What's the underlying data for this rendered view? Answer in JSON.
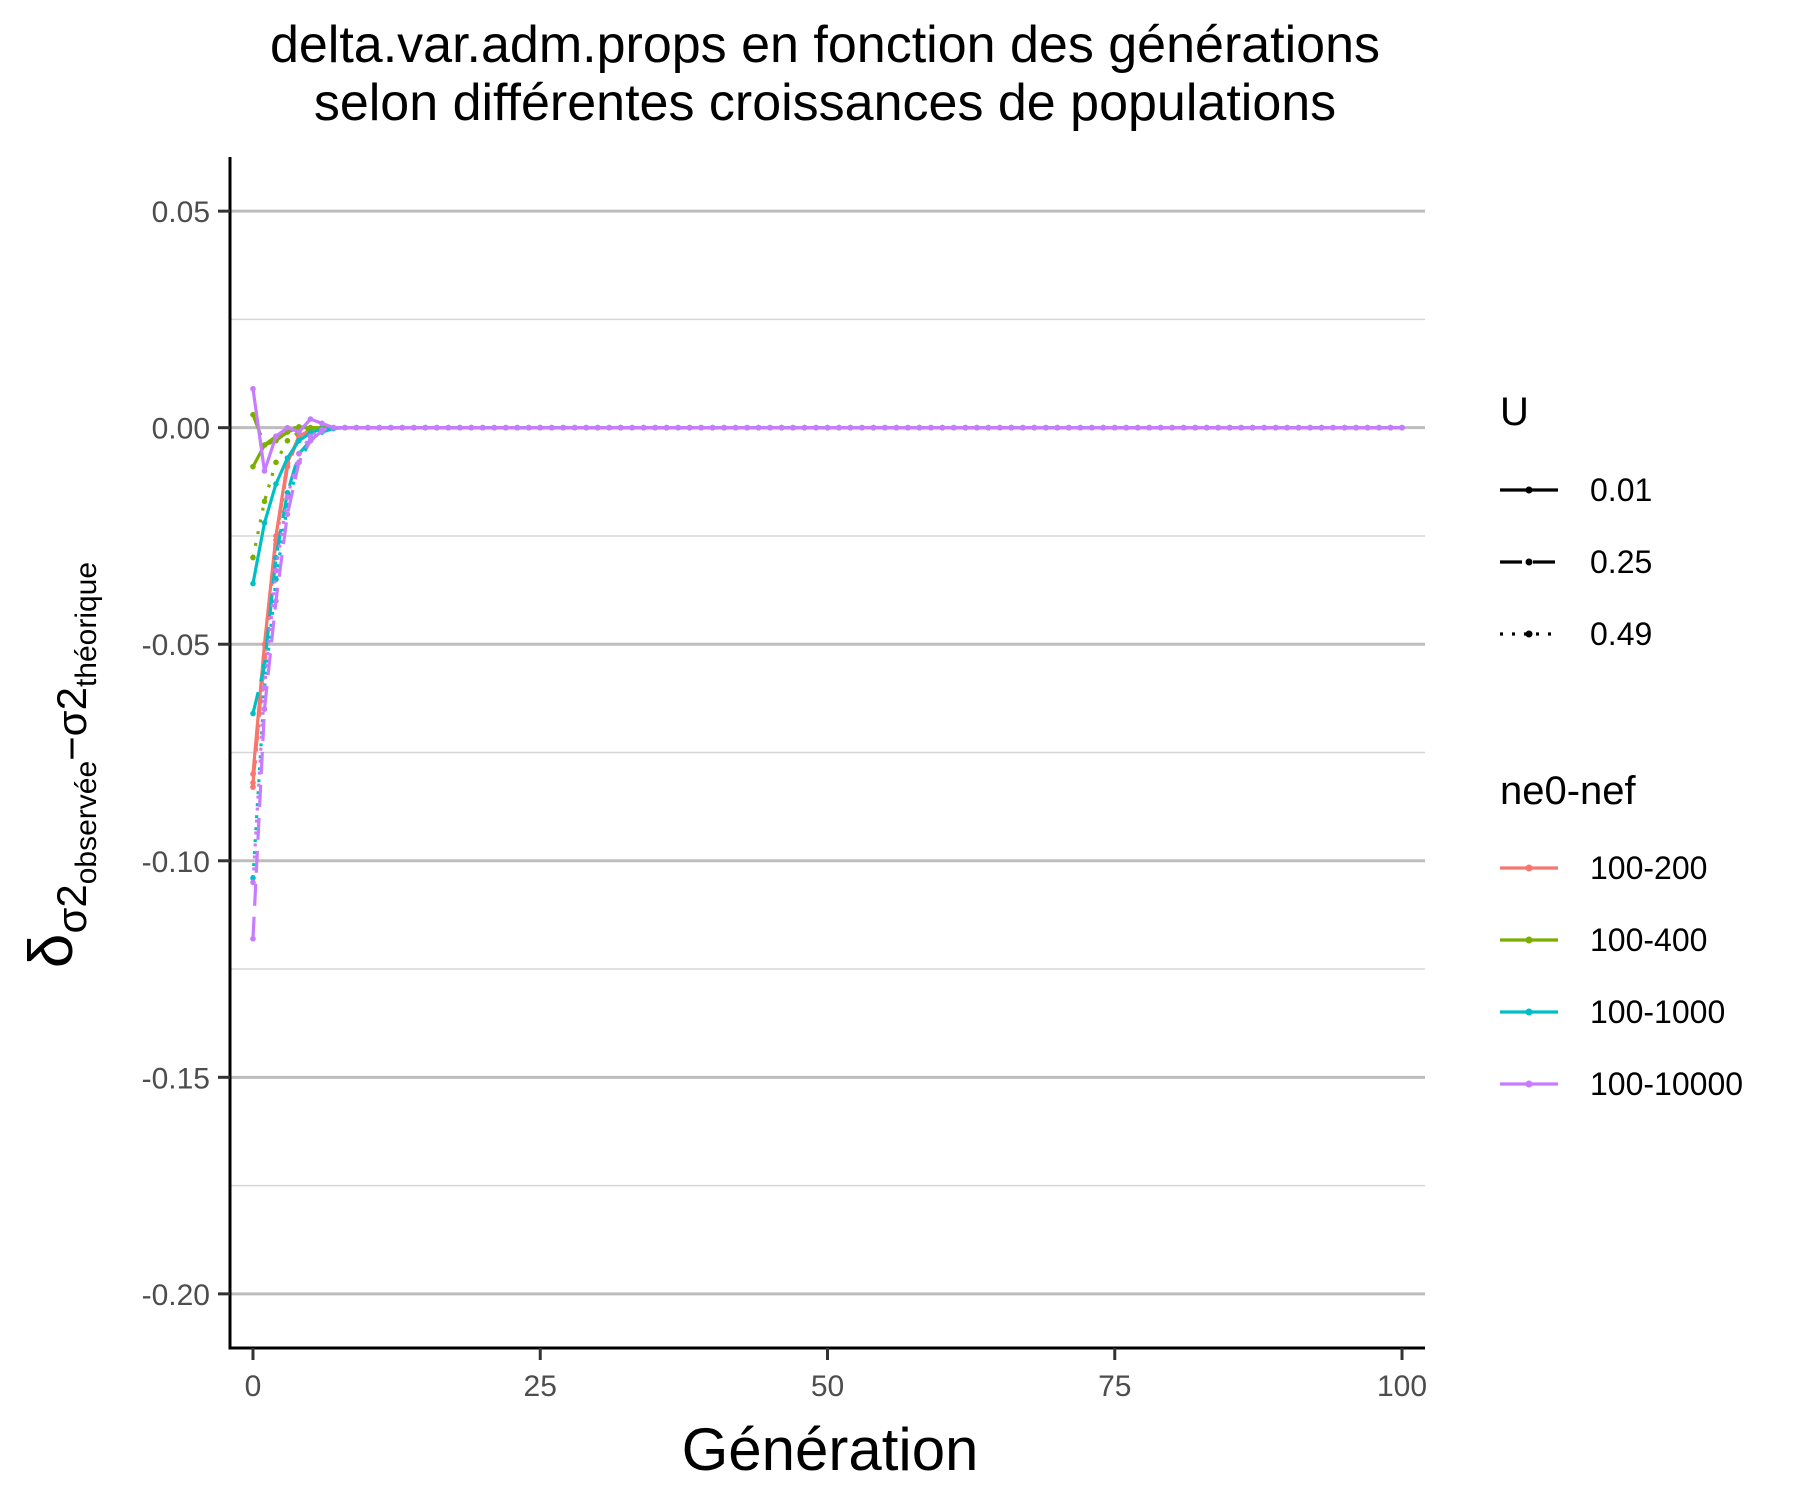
{
  "chart_data": {
    "type": "line",
    "title_lines": [
      "delta.var.adm.props en fonction des générations",
      "selon différentes croissances de populations"
    ],
    "xlabel": "Génération",
    "ylabel_parts": {
      "main": "δ",
      "sub1": "σ2",
      "sub1_sub": "observée",
      "minus": "−",
      "sub2": "σ2",
      "sub2_sub": "théorique"
    },
    "xlim": [
      -2,
      102
    ],
    "ylim": [
      -0.2125,
      0.0625
    ],
    "x_ticks": [
      0,
      25,
      50,
      75,
      100
    ],
    "x_tick_labels": [
      "0",
      "25",
      "50",
      "75",
      "100"
    ],
    "y_ticks": [
      0.05,
      0.0,
      -0.05,
      -0.1,
      -0.15,
      -0.2
    ],
    "y_tick_labels": [
      "0.05",
      "0.00",
      "-0.05",
      "-0.10",
      "-0.15",
      "-0.20"
    ],
    "y_minor_ticks": [
      0.025,
      -0.025,
      -0.075,
      -0.125,
      -0.175
    ],
    "grid": "horizontal",
    "legend_position": "right",
    "legends": {
      "linetype": {
        "title": "U",
        "items": [
          {
            "label": "0.01",
            "dash": "solid"
          },
          {
            "label": "0.25",
            "dash": "dashed"
          },
          {
            "label": "0.49",
            "dash": "dotted"
          }
        ]
      },
      "color": {
        "title": "ne0-nef",
        "items": [
          {
            "label": "100-200",
            "color": "#F8766D"
          },
          {
            "label": "100-400",
            "color": "#7CAE00"
          },
          {
            "label": "100-1000",
            "color": "#00BFC4"
          },
          {
            "label": "100-10000",
            "color": "#C77CFF"
          }
        ]
      }
    },
    "series": [
      {
        "group": "100-200",
        "U": "0.01",
        "color": "#F8766D",
        "dash": "solid",
        "values": [
          -0.08,
          -0.05,
          -0.025,
          -0.008,
          -0.002,
          -0.0005,
          -0.0001,
          0,
          0,
          0
        ]
      },
      {
        "group": "100-200",
        "U": "0.25",
        "color": "#F8766D",
        "dash": "dashed",
        "values": [
          -0.082,
          -0.053,
          -0.026,
          -0.009,
          -0.002,
          -0.0006,
          -0.0001,
          0,
          0,
          0
        ]
      },
      {
        "group": "100-200",
        "U": "0.49",
        "color": "#F8766D",
        "dash": "dotted",
        "values": [
          -0.083,
          -0.055,
          -0.027,
          -0.009,
          -0.002,
          -0.0006,
          -0.0001,
          0,
          0,
          0
        ]
      },
      {
        "group": "100-400",
        "U": "0.01",
        "color": "#7CAE00",
        "dash": "solid",
        "values": [
          -0.009,
          -0.004,
          -0.003,
          -0.001,
          0,
          0,
          0,
          0,
          0,
          0
        ]
      },
      {
        "group": "100-400",
        "U": "0.25",
        "color": "#7CAE00",
        "dash": "dashed",
        "values": [
          0.003,
          -0.004,
          -0.002,
          -0.0005,
          0.0002,
          0,
          0,
          0,
          0,
          0
        ]
      },
      {
        "group": "100-400",
        "U": "0.49",
        "color": "#7CAE00",
        "dash": "dotted",
        "values": [
          -0.03,
          -0.017,
          -0.008,
          -0.003,
          -0.001,
          -0.0002,
          0,
          0,
          0,
          0
        ]
      },
      {
        "group": "100-1000",
        "U": "0.01",
        "color": "#00BFC4",
        "dash": "solid",
        "values": [
          -0.036,
          -0.022,
          -0.013,
          -0.007,
          -0.003,
          -0.0012,
          -0.0003,
          0,
          0,
          0
        ]
      },
      {
        "group": "100-1000",
        "U": "0.25",
        "color": "#00BFC4",
        "dash": "dashed",
        "values": [
          -0.066,
          -0.055,
          -0.03,
          -0.015,
          -0.006,
          -0.003,
          -0.001,
          -0.0002,
          0,
          0
        ]
      },
      {
        "group": "100-1000",
        "U": "0.49",
        "color": "#00BFC4",
        "dash": "dotted",
        "values": [
          -0.104,
          -0.06,
          -0.035,
          -0.018,
          -0.008,
          -0.003,
          -0.001,
          -0.0002,
          0,
          0
        ]
      },
      {
        "group": "100-10000",
        "U": "0.01",
        "color": "#C77CFF",
        "dash": "solid",
        "values": [
          0.009,
          -0.01,
          -0.002,
          0,
          -0.001,
          0.002,
          0.001,
          0,
          0,
          0
        ]
      },
      {
        "group": "100-10000",
        "U": "0.25",
        "color": "#C77CFF",
        "dash": "dashed",
        "values": [
          -0.118,
          -0.065,
          -0.04,
          -0.02,
          -0.008,
          -0.003,
          -0.0008,
          0,
          0,
          0
        ]
      },
      {
        "group": "100-10000",
        "U": "0.49",
        "color": "#C77CFF",
        "dash": "dotted",
        "values": [
          -0.105,
          -0.06,
          -0.033,
          -0.016,
          -0.006,
          -0.002,
          -0.0005,
          0,
          0,
          0
        ]
      }
    ],
    "tail": {
      "from": 10,
      "to": 100,
      "value": 0
    }
  }
}
